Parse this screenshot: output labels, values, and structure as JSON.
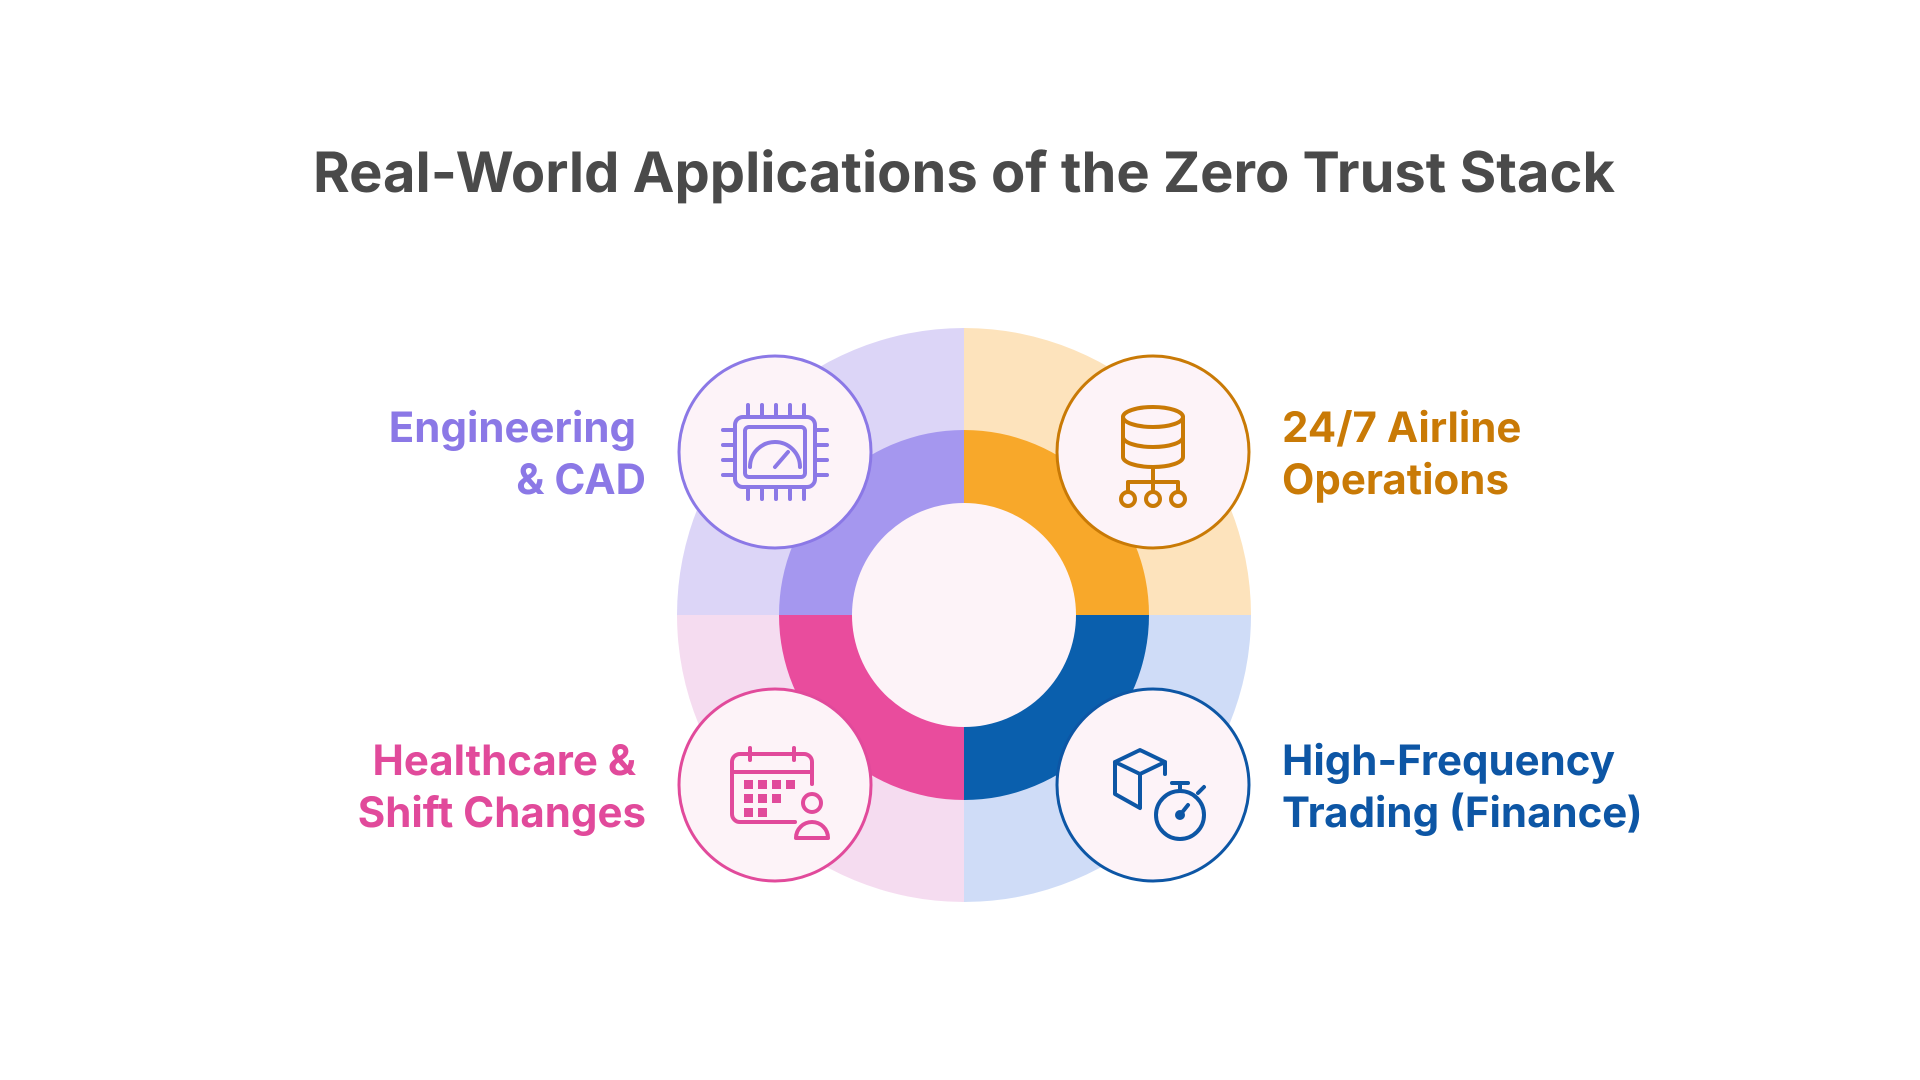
{
  "title": "Real-World Applications of the Zero Trust Stack",
  "items": [
    {
      "lines": [
        "Engineering",
        "& CAD"
      ]
    },
    {
      "lines": [
        "24/7 Airline",
        "Operations"
      ]
    },
    {
      "lines": [
        "Healthcare &",
        "Shift Changes"
      ]
    },
    {
      "lines": [
        "High-Frequency",
        "Trading (Finance)"
      ]
    }
  ]
}
